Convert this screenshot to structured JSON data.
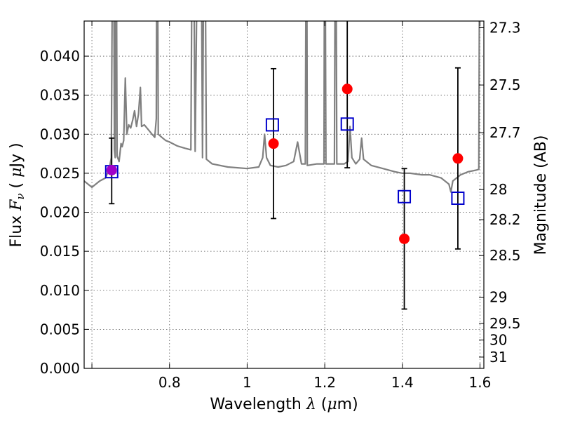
{
  "chart_data": {
    "type": "scatter",
    "title": "",
    "xlabel": "Wavelength  λ (μm)",
    "ylabel": "Flux  Fν  ( μJy )",
    "y2label": "Magnitude (AB)",
    "xlim": [
      0.58,
      1.61
    ],
    "ylim": [
      0.0,
      0.0445
    ],
    "grid": true,
    "x_ticks": [
      {
        "value": 0.6,
        "label": ""
      },
      {
        "value": 0.8,
        "label": "0.8"
      },
      {
        "value": 1.0,
        "label": "1"
      },
      {
        "value": 1.2,
        "label": "1.2"
      },
      {
        "value": 1.4,
        "label": "1.4"
      },
      {
        "value": 1.6,
        "label": "1.6"
      }
    ],
    "y_ticks": [
      {
        "value": 0.0,
        "label": "0.000"
      },
      {
        "value": 0.005,
        "label": "0.005"
      },
      {
        "value": 0.01,
        "label": "0.010"
      },
      {
        "value": 0.015,
        "label": "0.015"
      },
      {
        "value": 0.02,
        "label": "0.020"
      },
      {
        "value": 0.025,
        "label": "0.025"
      },
      {
        "value": 0.03,
        "label": "0.030"
      },
      {
        "value": 0.035,
        "label": "0.035"
      },
      {
        "value": 0.04,
        "label": "0.040"
      }
    ],
    "y2_ticks": [
      {
        "mag": 27.3,
        "label": "27.3"
      },
      {
        "mag": 27.5,
        "label": "27.5"
      },
      {
        "mag": 27.7,
        "label": "27.7"
      },
      {
        "mag": 28.0,
        "label": "28"
      },
      {
        "mag": 28.2,
        "label": "28.2"
      },
      {
        "mag": 28.5,
        "label": "28.5"
      },
      {
        "mag": 29.0,
        "label": "29"
      },
      {
        "mag": 29.5,
        "label": "29.5"
      },
      {
        "mag": 30.0,
        "label": "30"
      },
      {
        "mag": 31.0,
        "label": "31"
      }
    ],
    "template_spectrum": {
      "color": "#808080",
      "points": [
        [
          0.58,
          0.024
        ],
        [
          0.6,
          0.0232
        ],
        [
          0.62,
          0.024
        ],
        [
          0.635,
          0.0244
        ],
        [
          0.645,
          0.0256
        ],
        [
          0.65,
          0.027
        ],
        [
          0.655,
          0.07
        ],
        [
          0.658,
          0.028
        ],
        [
          0.66,
          0.027
        ],
        [
          0.662,
          0.07
        ],
        [
          0.665,
          0.0272
        ],
        [
          0.67,
          0.0265
        ],
        [
          0.675,
          0.0288
        ],
        [
          0.678,
          0.0284
        ],
        [
          0.682,
          0.0292
        ],
        [
          0.686,
          0.0372
        ],
        [
          0.69,
          0.03
        ],
        [
          0.695,
          0.0312
        ],
        [
          0.7,
          0.0308
        ],
        [
          0.705,
          0.0318
        ],
        [
          0.71,
          0.033
        ],
        [
          0.715,
          0.031
        ],
        [
          0.72,
          0.0326
        ],
        [
          0.725,
          0.036
        ],
        [
          0.728,
          0.031
        ],
        [
          0.735,
          0.0312
        ],
        [
          0.745,
          0.0306
        ],
        [
          0.755,
          0.03
        ],
        [
          0.762,
          0.0296
        ],
        [
          0.766,
          0.032
        ],
        [
          0.768,
          0.07
        ],
        [
          0.771,
          0.03
        ],
        [
          0.78,
          0.0296
        ],
        [
          0.79,
          0.0292
        ],
        [
          0.8,
          0.029
        ],
        [
          0.82,
          0.0285
        ],
        [
          0.84,
          0.0282
        ],
        [
          0.855,
          0.028
        ],
        [
          0.86,
          0.07
        ],
        [
          0.866,
          0.0278
        ],
        [
          0.875,
          0.07
        ],
        [
          0.88,
          0.07
        ],
        [
          0.885,
          0.027
        ],
        [
          0.89,
          0.07
        ],
        [
          0.895,
          0.0268
        ],
        [
          0.91,
          0.0262
        ],
        [
          0.95,
          0.0258
        ],
        [
          1.0,
          0.0256
        ],
        [
          1.03,
          0.0258
        ],
        [
          1.04,
          0.027
        ],
        [
          1.045,
          0.03
        ],
        [
          1.05,
          0.027
        ],
        [
          1.06,
          0.026
        ],
        [
          1.08,
          0.0258
        ],
        [
          1.1,
          0.026
        ],
        [
          1.12,
          0.0265
        ],
        [
          1.13,
          0.029
        ],
        [
          1.14,
          0.0262
        ],
        [
          1.15,
          0.0262
        ],
        [
          1.153,
          0.07
        ],
        [
          1.155,
          0.026
        ],
        [
          1.18,
          0.0262
        ],
        [
          1.198,
          0.0262
        ],
        [
          1.2,
          0.07
        ],
        [
          1.203,
          0.0262
        ],
        [
          1.225,
          0.0262
        ],
        [
          1.228,
          0.07
        ],
        [
          1.231,
          0.0262
        ],
        [
          1.25,
          0.0262
        ],
        [
          1.26,
          0.0265
        ],
        [
          1.265,
          0.031
        ],
        [
          1.27,
          0.027
        ],
        [
          1.28,
          0.0262
        ],
        [
          1.29,
          0.0268
        ],
        [
          1.295,
          0.0295
        ],
        [
          1.3,
          0.0268
        ],
        [
          1.32,
          0.026
        ],
        [
          1.35,
          0.0256
        ],
        [
          1.38,
          0.0252
        ],
        [
          1.4,
          0.025
        ],
        [
          1.42,
          0.025
        ],
        [
          1.45,
          0.0248
        ],
        [
          1.47,
          0.0248
        ],
        [
          1.5,
          0.0244
        ],
        [
          1.52,
          0.0236
        ],
        [
          1.525,
          0.0226
        ],
        [
          1.53,
          0.024
        ],
        [
          1.55,
          0.0248
        ],
        [
          1.57,
          0.0252
        ],
        [
          1.59,
          0.0254
        ],
        [
          1.597,
          0.0255
        ],
        [
          1.6,
          0.07
        ],
        [
          1.61,
          0.07
        ]
      ]
    },
    "series": [
      {
        "marker": "circle",
        "color": "#ff0000",
        "points": [
          {
            "x": 0.651,
            "y": 0.0254,
            "err_low": 0.0211,
            "err_high": 0.0295
          },
          {
            "x": 1.068,
            "y": 0.0288,
            "err_low": 0.0192,
            "err_high": 0.0384
          },
          {
            "x": 1.258,
            "y": 0.0358,
            "err_low": 0.0257,
            "err_high": 0.046
          },
          {
            "x": 1.405,
            "y": 0.0166,
            "err_low": 0.0076,
            "err_high": 0.0256
          },
          {
            "x": 1.543,
            "y": 0.0269,
            "err_low": 0.0153,
            "err_high": 0.0385
          }
        ]
      },
      {
        "marker": "square",
        "color": "#0000cc",
        "points": [
          {
            "x": 0.651,
            "y": 0.0252
          },
          {
            "x": 1.065,
            "y": 0.0312
          },
          {
            "x": 1.258,
            "y": 0.0313
          },
          {
            "x": 1.405,
            "y": 0.022
          },
          {
            "x": 1.543,
            "y": 0.0218
          }
        ]
      }
    ],
    "overlap_marker_color": "#a000c8"
  }
}
